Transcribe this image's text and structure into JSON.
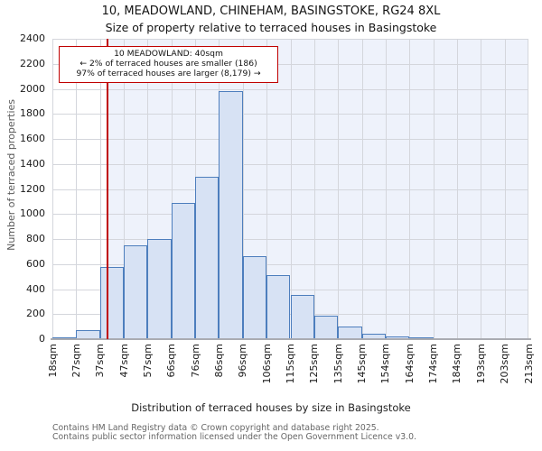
{
  "title": "10, MEADOWLAND, CHINEHAM, BASINGSTOKE, RG24 8XL",
  "subtitle": "Size of property relative to terraced houses in Basingstoke",
  "annotation": {
    "line1": "10 MEADOWLAND: 40sqm",
    "line2": "← 2% of terraced houses are smaller (186)",
    "line3": "97% of terraced houses are larger (8,179) →"
  },
  "footer": {
    "line1": "Contains HM Land Registry data © Crown copyright and database right 2025.",
    "line2": "Contains public sector information licensed under the Open Government Licence v3.0."
  },
  "colors": {
    "marker_red": "#c00000",
    "annotation_border_red": "#c00000",
    "bar_fill": "#d7e2f4",
    "bar_border": "#4d7ebd",
    "shade_region": "#eef2fb",
    "gridline": "#d4d6dc",
    "axis_line": "#aaacb2"
  },
  "chart_data": {
    "type": "bar",
    "title": "10, MEADOWLAND, CHINEHAM, BASINGSTOKE, RG24 8XL",
    "subtitle": "Size of property relative to terraced houses in Basingstoke",
    "xlabel": "Distribution of terraced houses by size in Basingstoke",
    "ylabel": "Number of terraced properties",
    "bin_edges_sqm": [
      18,
      27,
      37,
      47,
      57,
      66,
      76,
      86,
      96,
      106,
      115,
      125,
      135,
      145,
      154,
      164,
      174,
      184,
      193,
      203,
      213
    ],
    "x_tick_labels": [
      "18sqm",
      "27sqm",
      "37sqm",
      "47sqm",
      "57sqm",
      "66sqm",
      "76sqm",
      "86sqm",
      "96sqm",
      "106sqm",
      "115sqm",
      "125sqm",
      "135sqm",
      "145sqm",
      "154sqm",
      "164sqm",
      "174sqm",
      "184sqm",
      "193sqm",
      "203sqm",
      "213sqm"
    ],
    "values": [
      10,
      70,
      575,
      750,
      800,
      1090,
      1300,
      1980,
      660,
      515,
      350,
      190,
      100,
      40,
      25,
      10,
      0,
      0,
      0,
      0
    ],
    "ylim": [
      0,
      2400
    ],
    "y_ticks": [
      0,
      200,
      400,
      600,
      800,
      1000,
      1200,
      1400,
      1600,
      1800,
      2000,
      2200,
      2400
    ],
    "grid": true,
    "legend": "none",
    "marker": {
      "label": "10 MEADOWLAND",
      "value_sqm": 40,
      "pct_smaller": "2%",
      "count_smaller": "186",
      "pct_larger": "97%",
      "count_larger": "8,179"
    }
  }
}
